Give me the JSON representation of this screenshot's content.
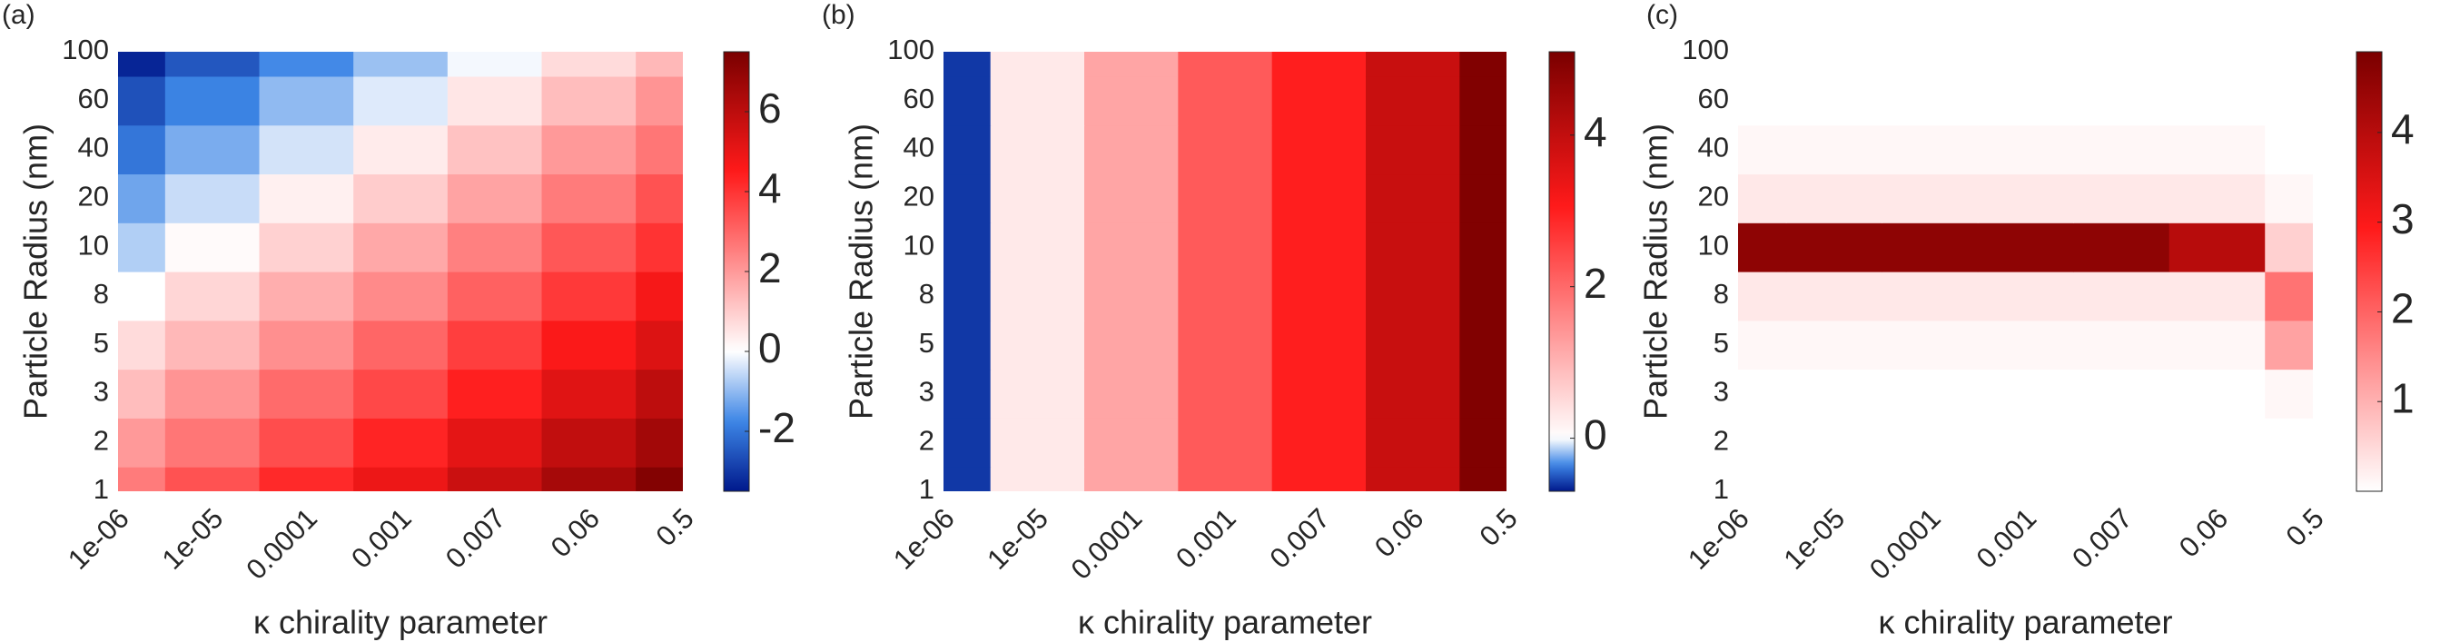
{
  "chart_data": [
    {
      "type": "heatmap",
      "label": "(a)",
      "x_label": "κ chirality parameter",
      "y_label": "Particle Radius (nm)",
      "categories": [
        "1e-06",
        "1e-05",
        "0.0001",
        "0.001",
        "0.007",
        "0.06",
        "0.5"
      ],
      "y_categories": [
        "1",
        "2",
        "3",
        "5",
        "8",
        "10",
        "20",
        "40",
        "60",
        "100"
      ],
      "z": [
        [
          2.6,
          3.4,
          4.2,
          4.9,
          5.7,
          6.5,
          7.3
        ],
        [
          2.0,
          2.7,
          3.5,
          4.3,
          5.1,
          5.9,
          6.6
        ],
        [
          1.3,
          2.1,
          2.9,
          3.6,
          4.4,
          5.2,
          6.0
        ],
        [
          0.7,
          1.4,
          2.2,
          3.0,
          3.8,
          4.6,
          5.3
        ],
        [
          0,
          0.8,
          1.6,
          2.3,
          3.1,
          3.9,
          4.7
        ],
        [
          -0.7,
          0.1,
          0.9,
          1.7,
          2.5,
          3.3,
          4.0
        ],
        [
          -1.3,
          -0.5,
          0.3,
          1.0,
          1.8,
          2.6,
          3.4
        ],
        [
          -2.0,
          -1.2,
          -0.4,
          0.4,
          1.2,
          2.0,
          2.7
        ],
        [
          -2.6,
          -1.8,
          -1.0,
          -0.3,
          0.5,
          1.3,
          2.1
        ],
        [
          -3.3,
          -2.5,
          -1.7,
          -0.9,
          -0.1,
          0.7,
          1.4
        ]
      ],
      "zlim": [
        -3.5,
        7.5
      ],
      "zticks": [
        -2,
        0,
        2,
        4,
        6
      ],
      "colormap": [
        "#00198c",
        "#3d86e6",
        "#ffffff",
        "#ff1a1a",
        "#7a0000"
      ]
    },
    {
      "type": "heatmap",
      "label": "(b)",
      "x_label": "κ chirality parameter",
      "y_label": "Particle Radius (nm)",
      "categories": [
        "1e-06",
        "1e-05",
        "0.0001",
        "0.001",
        "0.007",
        "0.06",
        "0.5"
      ],
      "y_categories": [
        "1",
        "2",
        "3",
        "5",
        "8",
        "10",
        "20",
        "40",
        "60",
        "100"
      ],
      "z": [
        [
          -0.6,
          0.3,
          1.2,
          2.2,
          3.0,
          3.9,
          5.0
        ],
        [
          -0.6,
          0.3,
          1.2,
          2.2,
          3.0,
          3.9,
          5.0
        ],
        [
          -0.6,
          0.3,
          1.2,
          2.2,
          3.0,
          3.9,
          5.0
        ],
        [
          -0.6,
          0.3,
          1.2,
          2.2,
          3.0,
          3.9,
          5.0
        ],
        [
          -0.6,
          0.3,
          1.2,
          2.2,
          3.0,
          3.9,
          5.0
        ],
        [
          -0.6,
          0.3,
          1.2,
          2.2,
          3.0,
          3.9,
          5.0
        ],
        [
          -0.6,
          0.3,
          1.2,
          2.2,
          3.0,
          3.9,
          5.0
        ],
        [
          -0.6,
          0.3,
          1.2,
          2.2,
          3.0,
          3.9,
          5.0
        ],
        [
          -0.6,
          0.3,
          1.2,
          2.2,
          3.0,
          3.9,
          5.0
        ],
        [
          -0.6,
          0.3,
          1.2,
          2.2,
          3.0,
          3.9,
          5.0
        ]
      ],
      "zlim": [
        -0.7,
        5.1
      ],
      "zticks": [
        0,
        2,
        4
      ],
      "colormap": [
        "#00198c",
        "#3d86e6",
        "#ffffff",
        "#ff1a1a",
        "#7a0000"
      ]
    },
    {
      "type": "heatmap",
      "label": "(c)",
      "x_label": "κ chirality parameter",
      "y_label": "Particle Radius (nm)",
      "categories": [
        "1e-06",
        "1e-05",
        "0.0001",
        "0.001",
        "0.007",
        "0.06",
        "0.5"
      ],
      "y_categories": [
        "1",
        "2",
        "3",
        "5",
        "8",
        "10",
        "20",
        "40",
        "60",
        "100"
      ],
      "z": [
        [
          0,
          0,
          0,
          0,
          0,
          0,
          0
        ],
        [
          0,
          0,
          0,
          0,
          0,
          0,
          0
        ],
        [
          0,
          0,
          0,
          0,
          0,
          0,
          0.1
        ],
        [
          0.1,
          0.1,
          0.1,
          0.1,
          0.1,
          0.1,
          1.2
        ],
        [
          0.3,
          0.3,
          0.3,
          0.3,
          0.3,
          0.3,
          1.8
        ],
        [
          4.6,
          4.6,
          4.6,
          4.6,
          4.6,
          4.0,
          0.6
        ],
        [
          0.3,
          0.3,
          0.3,
          0.3,
          0.3,
          0.3,
          0.1
        ],
        [
          0.1,
          0.1,
          0.1,
          0.1,
          0.1,
          0.1,
          0
        ],
        [
          0,
          0,
          0,
          0,
          0,
          0,
          0
        ],
        [
          0,
          0,
          0,
          0,
          0,
          0,
          0
        ]
      ],
      "zlim": [
        0,
        4.9
      ],
      "zticks": [
        1,
        2,
        3,
        4
      ],
      "colormap": [
        "#00198c",
        "#3d86e6",
        "#ffffff",
        "#ff1a1a",
        "#7a0000"
      ]
    }
  ]
}
